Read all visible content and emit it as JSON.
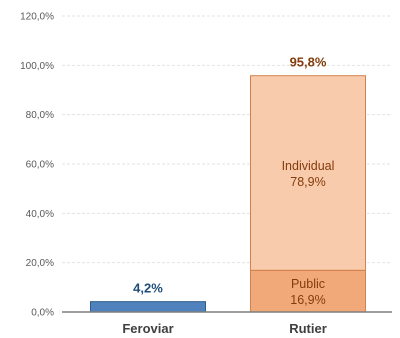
{
  "chart_data": {
    "type": "bar",
    "stacked": true,
    "categories": [
      "Feroviar",
      "Rutier"
    ],
    "series": [
      {
        "name": "",
        "values": [
          4.2,
          null
        ],
        "color": "#4f81bd",
        "border": "#2e5f91"
      },
      {
        "name": "Public",
        "values": [
          null,
          16.9
        ],
        "color": "#f1a97a",
        "border": "#d2824c"
      },
      {
        "name": "Individual",
        "values": [
          null,
          78.9
        ],
        "color": "#f8cbad",
        "border": "#d2824c"
      }
    ],
    "totals": [
      4.2,
      95.8
    ],
    "total_labels": [
      "4,2%",
      "95,8%"
    ],
    "total_label_colors": [
      "#1f4e79",
      "#843c0c"
    ],
    "segment_labels": [
      {
        "category": "Rutier",
        "series": "Individual",
        "line1": "Individual",
        "line2": "78,9%",
        "color": "#843c0c"
      },
      {
        "category": "Rutier",
        "series": "Public",
        "line1": "Public",
        "line2": "16,9%",
        "color": "#843c0c"
      }
    ],
    "ylim": [
      0,
      120
    ],
    "y_ticks": [
      0,
      20,
      40,
      60,
      80,
      100,
      120
    ],
    "y_tick_labels": [
      "0,0%",
      "20,0%",
      "40,0%",
      "60,0%",
      "80,0%",
      "100,0%",
      "120,0%"
    ],
    "grid": true,
    "title": "",
    "xlabel": "",
    "ylabel": ""
  }
}
